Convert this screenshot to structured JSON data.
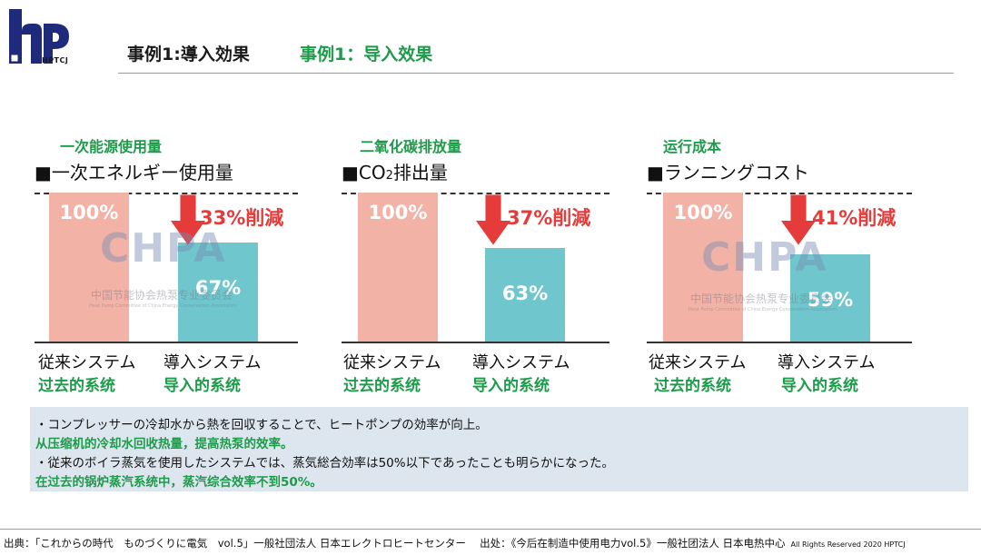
{
  "logo": {
    "caption": "HPTCJ"
  },
  "header": {
    "title_jp": "事例1:導入効果",
    "title_cn": "事例1：导入效果"
  },
  "watermark": {
    "brand": "CHPA",
    "org_cn": "中国节能协会热泵专业委员会",
    "org_en": "Heat Pump Committee of China Energy Conservation Association"
  },
  "chart_data": [
    {
      "type": "bar",
      "title_cn": "一次能源使用量",
      "title": "■一次エネルギー使用量",
      "categories": [
        "従来システム",
        "導入システム"
      ],
      "categories_cn": [
        "过去的系统",
        "导入的系统"
      ],
      "values": [
        100,
        67
      ],
      "value_labels": [
        "100%",
        "67%"
      ],
      "annotation": "33%削減",
      "ylim": [
        0,
        100
      ]
    },
    {
      "type": "bar",
      "title_cn": "二氧化碳排放量",
      "title_prefix": "■CO",
      "title_sub": "2",
      "title_suffix": "排出量",
      "categories": [
        "従来システム",
        "導入システム"
      ],
      "categories_cn": [
        "过去的系统",
        "导入的系统"
      ],
      "values": [
        100,
        63
      ],
      "value_labels": [
        "100%",
        "63%"
      ],
      "annotation": "37%削減",
      "ylim": [
        0,
        100
      ]
    },
    {
      "type": "bar",
      "title_cn": "运行成本",
      "title": "■ランニングコスト",
      "categories": [
        "従来システム",
        "導入システム"
      ],
      "categories_cn": [
        "过去的系统",
        "导入的系统"
      ],
      "values": [
        100,
        59
      ],
      "value_labels": [
        "100%",
        "59%"
      ],
      "annotation": "41%削減",
      "ylim": [
        0,
        100
      ]
    }
  ],
  "notes": [
    {
      "lang": "jp",
      "text": "・コンプレッサーの冷却水から熱を回収することで、ヒートポンプの効率が向上。"
    },
    {
      "lang": "cn",
      "text": "从压缩机的冷却水回收热量，提高热泵的效率。"
    },
    {
      "lang": "jp",
      "text": "・従来のボイラ蒸気を使用したシステムでは、蒸気総合効率は50%以下であったことも明らかになった。"
    },
    {
      "lang": "cn",
      "text": "在过去的锅炉蒸汽系统中，蒸汽综合效率不到50%。"
    }
  ],
  "footer": {
    "source": "出典：「これからの時代　ものづくりに電気　vol.5」一般社団法人 日本エレクトロヒートセンター　 出处：《今后在制造中使用电力vol.5》一般社团法人 日本电热中心",
    "rights": "All Rights Reserved 2020 HPTCJ"
  }
}
